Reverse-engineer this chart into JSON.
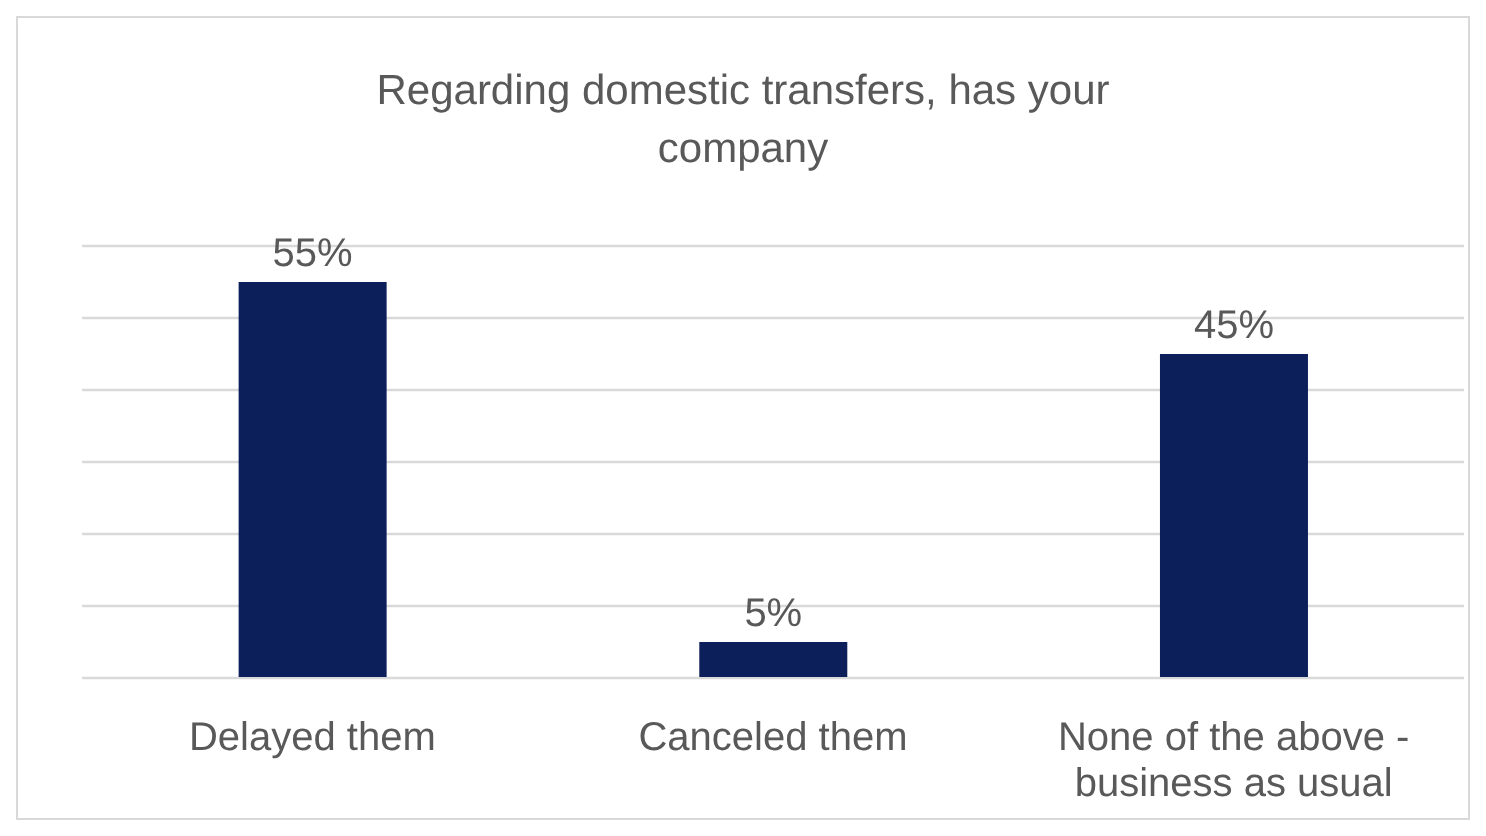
{
  "chart_data": {
    "type": "bar",
    "title": "Regarding domestic transfers, has your company",
    "categories": [
      "Delayed them",
      "Canceled them",
      "None of the above - business as usual"
    ],
    "values": [
      55,
      5,
      45
    ],
    "value_labels": [
      "55%",
      "5%",
      "45%"
    ],
    "color": "#0c1f5b",
    "ylim": [
      0,
      60
    ],
    "yticks": [
      {
        "value": 0,
        "label": null
      },
      {
        "value": 10,
        "label": null
      },
      {
        "value": 20,
        "label": null
      },
      {
        "value": 30,
        "label": null
      },
      {
        "value": 40,
        "label": null
      },
      {
        "value": 50,
        "label": null
      },
      {
        "value": 60,
        "label": null
      }
    ],
    "grid": "y",
    "tick_labels": "x",
    "legend": false
  }
}
